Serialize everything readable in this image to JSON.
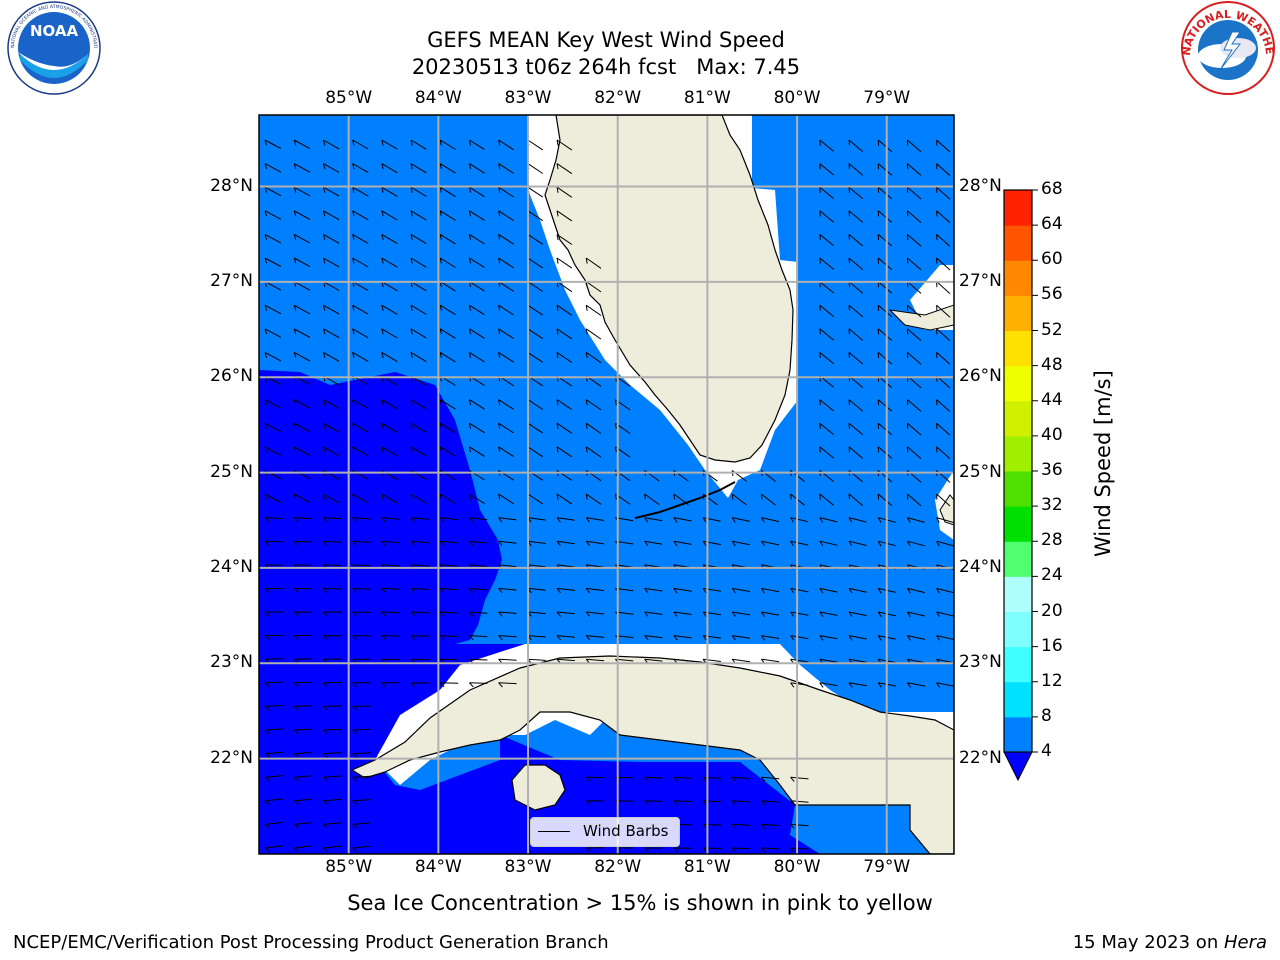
{
  "title": {
    "line1": "GEFS MEAN Key West Wind Speed",
    "line2": "20230513 t06z 264h fcst   Max: 7.45"
  },
  "logos": {
    "left": {
      "name": "NOAA",
      "text": "NOAA",
      "ring_text": "NATIONAL OCEANIC AND ATMOSPHERIC ADMINISTRATION · U.S. DEPARTMENT OF COMMERCE"
    },
    "right": {
      "name": "National Weather Service",
      "ring_text": "NATIONAL WEATHER SERVICE"
    }
  },
  "map": {
    "lon_labels": [
      "85°W",
      "84°W",
      "83°W",
      "82°W",
      "81°W",
      "80°W",
      "79°W"
    ],
    "lat_labels": [
      "28°N",
      "27°N",
      "26°N",
      "25°N",
      "24°N",
      "23°N",
      "22°N"
    ],
    "lon_range": [
      -86.0,
      -78.25
    ],
    "lat_range": [
      21.0,
      28.75
    ],
    "colors": {
      "land": "#eeeddc",
      "wind_4_8": "#0080ff",
      "wind_below_4": "#0000ff",
      "grid": "#b0b0b0"
    }
  },
  "legend": {
    "label": "Wind Barbs"
  },
  "colorbar": {
    "title": "Wind Speed [m/s]",
    "ticks": [
      "4",
      "8",
      "12",
      "16",
      "20",
      "24",
      "28",
      "32",
      "36",
      "40",
      "44",
      "48",
      "52",
      "56",
      "60",
      "64",
      "68"
    ],
    "extend_color": "#0000ff",
    "colors": [
      "#0080ff",
      "#00e0ff",
      "#00ffff",
      "#40ffff",
      "#80ffff",
      "#b0ffff",
      "#50ff70",
      "#20ff30",
      "#00e000",
      "#50e000",
      "#a0ee00",
      "#d0f000",
      "#f0ff00",
      "#ffe000",
      "#ffcc00",
      "#ffaa00",
      "#ff8800",
      "#ff6600",
      "#ff4400",
      "#ff2200",
      "#ff0000"
    ]
  },
  "footer": {
    "note": "Sea Ice Concentration > 15% is shown in pink to yellow",
    "left": "NCEP/EMC/Verification Post Processing Product Generation Branch",
    "right_date": "15 May 2023 on ",
    "right_host": "Hera"
  }
}
